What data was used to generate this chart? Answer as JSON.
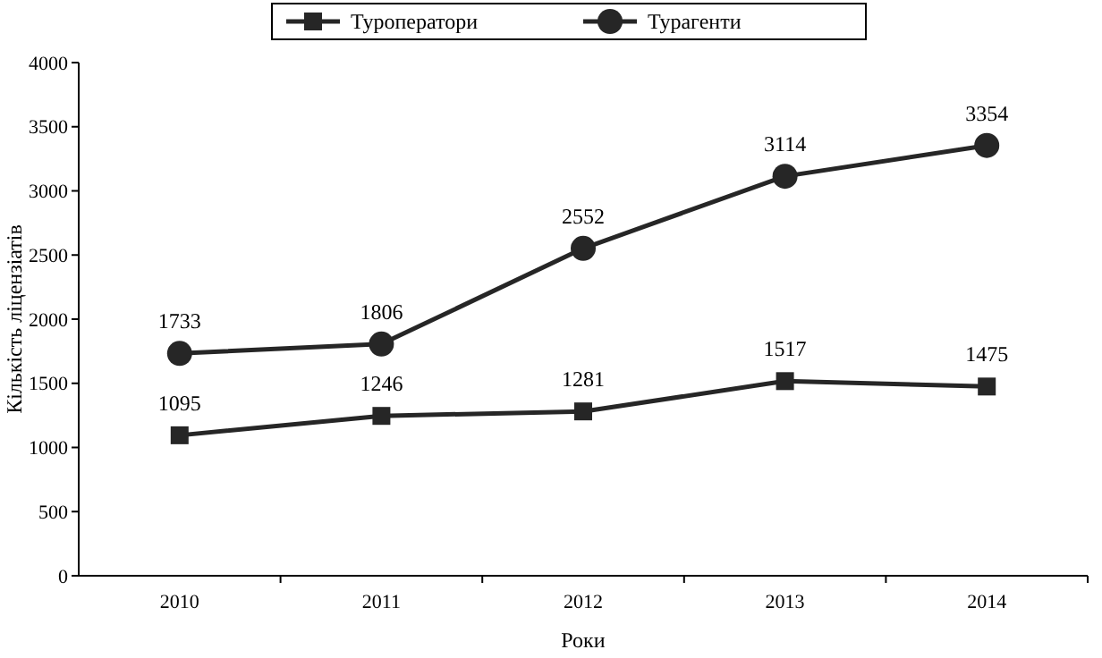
{
  "chart_data": {
    "type": "line",
    "xlabel": "Роки",
    "ylabel": "Кількість ліцензіатів",
    "categories": [
      "2010",
      "2011",
      "2012",
      "2013",
      "2014"
    ],
    "ylim": [
      0,
      4000
    ],
    "yticks": [
      0,
      500,
      1000,
      1500,
      2000,
      2500,
      3000,
      3500,
      4000
    ],
    "grid": false,
    "legend": "top",
    "data_labels": true,
    "line_style": "solid",
    "series": [
      {
        "name": "Туроператори",
        "color": "#262626",
        "marker": "square",
        "values": [
          1095,
          1246,
          1281,
          1517,
          1475
        ]
      },
      {
        "name": "Турагенти",
        "color": "#262626",
        "marker": "circle",
        "values": [
          1733,
          1806,
          2552,
          3114,
          3354
        ]
      }
    ]
  }
}
